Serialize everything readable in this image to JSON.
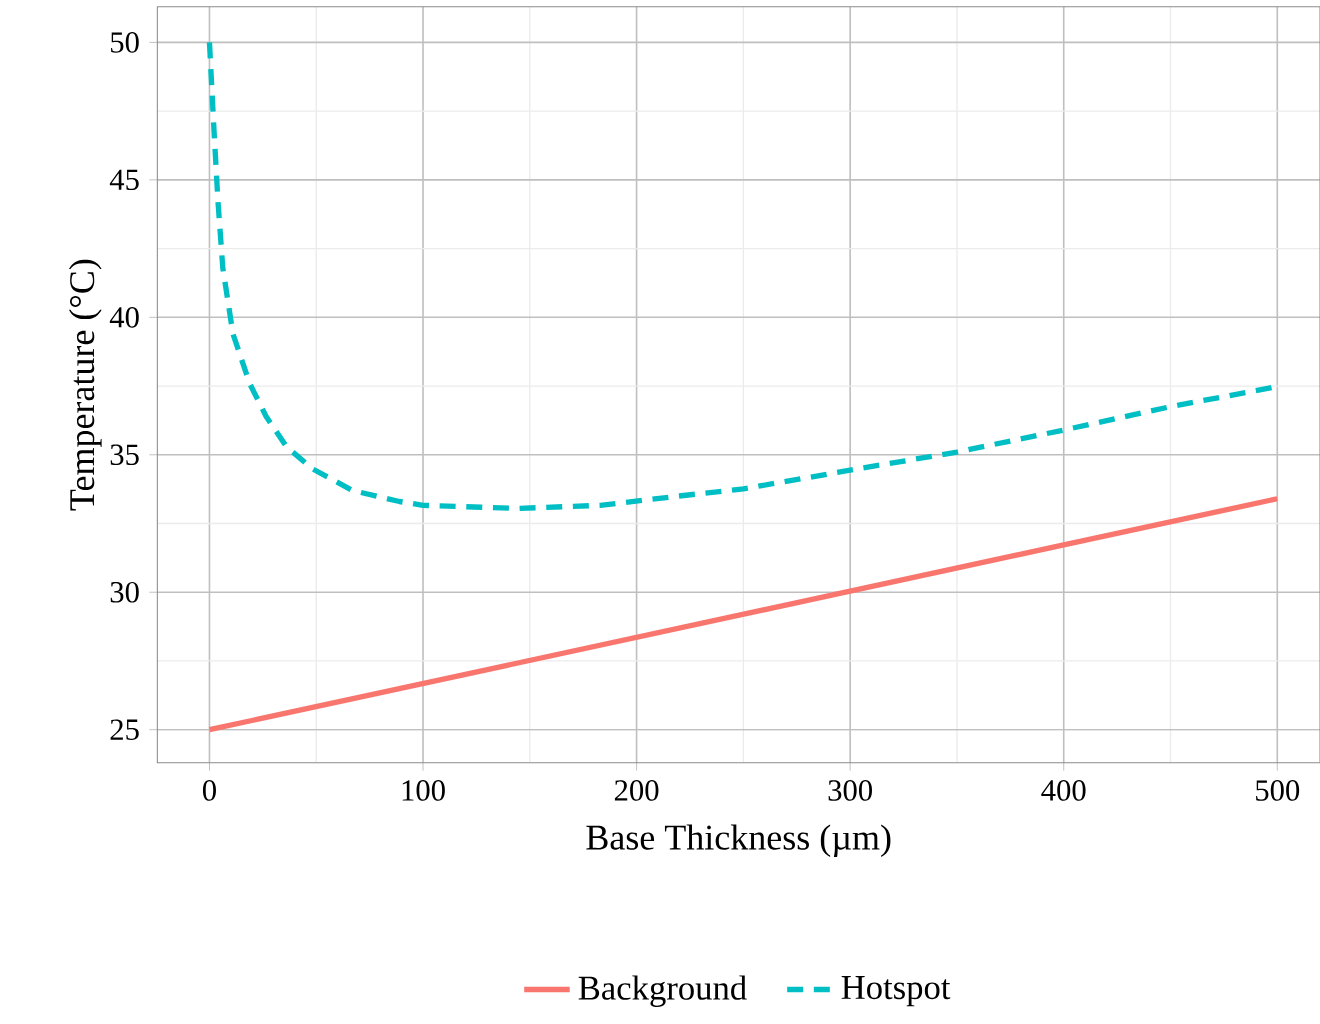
{
  "chart_data": {
    "type": "line",
    "xlabel": "Base Thickness (µm)",
    "ylabel": "Temperature (°C)",
    "xlim": [
      -24.4,
      520
    ],
    "ylim": [
      23.8,
      51.3
    ],
    "xticks": [
      0,
      100,
      200,
      300,
      400,
      500
    ],
    "yticks": [
      25,
      30,
      35,
      40,
      45,
      50
    ],
    "grid": true,
    "legend": "bottom",
    "marker": "none",
    "series": [
      {
        "name": "Background",
        "color": "#f8766d",
        "line_style": "solid",
        "x": [
          0,
          100,
          200,
          300,
          400,
          500
        ],
        "values": [
          25,
          26.68,
          28.36,
          30.04,
          31.72,
          33.4
        ]
      },
      {
        "name": "Hotspot",
        "color": "#00bfc4",
        "line_style": "dashed",
        "x": [
          0,
          2.2,
          4,
          6.25,
          11,
          18.8,
          26.5,
          36,
          48,
          67,
          89,
          100,
          145,
          183,
          220,
          250,
          300,
          350,
          400,
          450,
          500
        ],
        "values": [
          50,
          46.7,
          44.2,
          41.8,
          39.4,
          37.6,
          36.4,
          35.3,
          34.5,
          33.7,
          33.3,
          33.16,
          33.05,
          33.16,
          33.5,
          33.76,
          34.44,
          35.1,
          35.9,
          36.75,
          37.48
        ]
      }
    ]
  }
}
